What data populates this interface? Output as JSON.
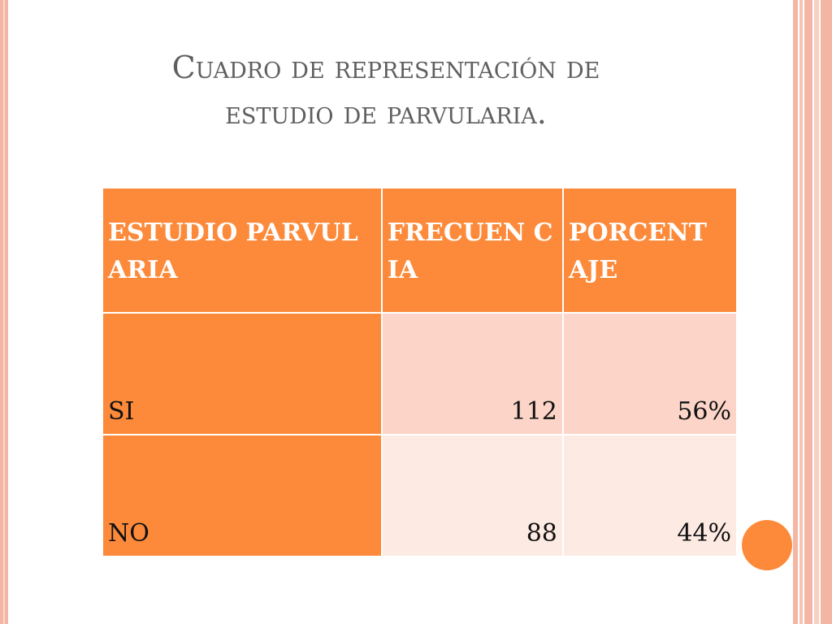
{
  "title": {
    "line1": "Cuadro de representación de",
    "line2": "estudio de parvularia."
  },
  "table": {
    "headers": [
      "ESTUDIO PARVULARIA",
      "FRECUEN CIA",
      "PORCENT AJE"
    ],
    "rows": [
      {
        "label": "SI",
        "frequency": "112",
        "percent": "56%"
      },
      {
        "label": "NO",
        "frequency": "88",
        "percent": "44%"
      }
    ]
  },
  "colors": {
    "accent_orange": "#fd8a3a",
    "row1_fill": "#fcd5c8",
    "row2_fill": "#fdeae3",
    "border_pink": "#f4b6a4",
    "title_text": "#5f5f5f"
  }
}
